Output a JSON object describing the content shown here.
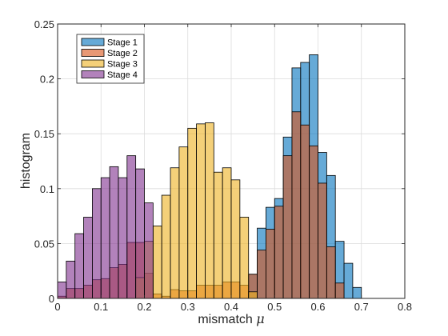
{
  "chart_data": {
    "type": "bar",
    "subtype": "overlaid-histogram",
    "title": "",
    "xlabel": "mismatch",
    "xlabel_symbol": "μ",
    "ylabel": "histogram",
    "xlim": [
      0,
      0.8
    ],
    "ylim": [
      0,
      0.25
    ],
    "xticks": [
      "0",
      "0.1",
      "0.2",
      "0.3",
      "0.4",
      "0.5",
      "0.6",
      "0.7",
      "0.8"
    ],
    "xtick_values": [
      0,
      0.1,
      0.2,
      0.3,
      0.4,
      0.5,
      0.6,
      0.7,
      0.8
    ],
    "yticks": [
      "0",
      "0.05",
      "0.1",
      "0.15",
      "0.2",
      "0.25"
    ],
    "ytick_values": [
      0,
      0.05,
      0.1,
      0.15,
      0.2,
      0.25
    ],
    "grid": true,
    "legend_position": "top-left",
    "bin_width": 0.02,
    "series": [
      {
        "name": "Stage 1",
        "color": "#0072BD",
        "bin_starts": [
          0.44,
          0.46,
          0.48,
          0.5,
          0.52,
          0.54,
          0.56,
          0.58,
          0.6,
          0.62,
          0.64,
          0.66,
          0.68
        ],
        "values": [
          0.022,
          0.064,
          0.083,
          0.091,
          0.147,
          0.21,
          0.215,
          0.222,
          0.133,
          0.112,
          0.052,
          0.032,
          0.01
        ]
      },
      {
        "name": "Stage 2",
        "color": "#D95319",
        "bin_starts": [
          0.0,
          0.02,
          0.04,
          0.06,
          0.08,
          0.1,
          0.12,
          0.14,
          0.16,
          0.18,
          0.2,
          0.22,
          0.24,
          0.26,
          0.28,
          0.3,
          0.32,
          0.34,
          0.36,
          0.38,
          0.4,
          0.42,
          0.44,
          0.46,
          0.48,
          0.5,
          0.52,
          0.54,
          0.56,
          0.58,
          0.6,
          0.62,
          0.64
        ],
        "values": [
          0.002,
          0.009,
          0.009,
          0.012,
          0.017,
          0.018,
          0.028,
          0.031,
          0.051,
          0.051,
          0.023,
          0.004,
          0.002,
          0.008,
          0.007,
          0.007,
          0.012,
          0.012,
          0.012,
          0.015,
          0.015,
          0.012,
          0.022,
          0.044,
          0.063,
          0.084,
          0.13,
          0.17,
          0.158,
          0.139,
          0.105,
          0.047,
          0.014
        ]
      },
      {
        "name": "Stage 3",
        "color": "#EDB120",
        "bin_starts": [
          0.18,
          0.2,
          0.22,
          0.24,
          0.26,
          0.28,
          0.3,
          0.32,
          0.34,
          0.36,
          0.38,
          0.4,
          0.42,
          0.44
        ],
        "values": [
          0.019,
          0.052,
          0.066,
          0.094,
          0.119,
          0.138,
          0.155,
          0.159,
          0.16,
          0.115,
          0.119,
          0.108,
          0.074,
          0.006
        ]
      },
      {
        "name": "Stage 4",
        "color": "#7E2F8E",
        "bin_starts": [
          0.0,
          0.02,
          0.04,
          0.06,
          0.08,
          0.1,
          0.12,
          0.14,
          0.16,
          0.18,
          0.2
        ],
        "values": [
          0.015,
          0.034,
          0.059,
          0.074,
          0.1,
          0.11,
          0.12,
          0.11,
          0.13,
          0.118,
          0.087
        ]
      }
    ]
  }
}
